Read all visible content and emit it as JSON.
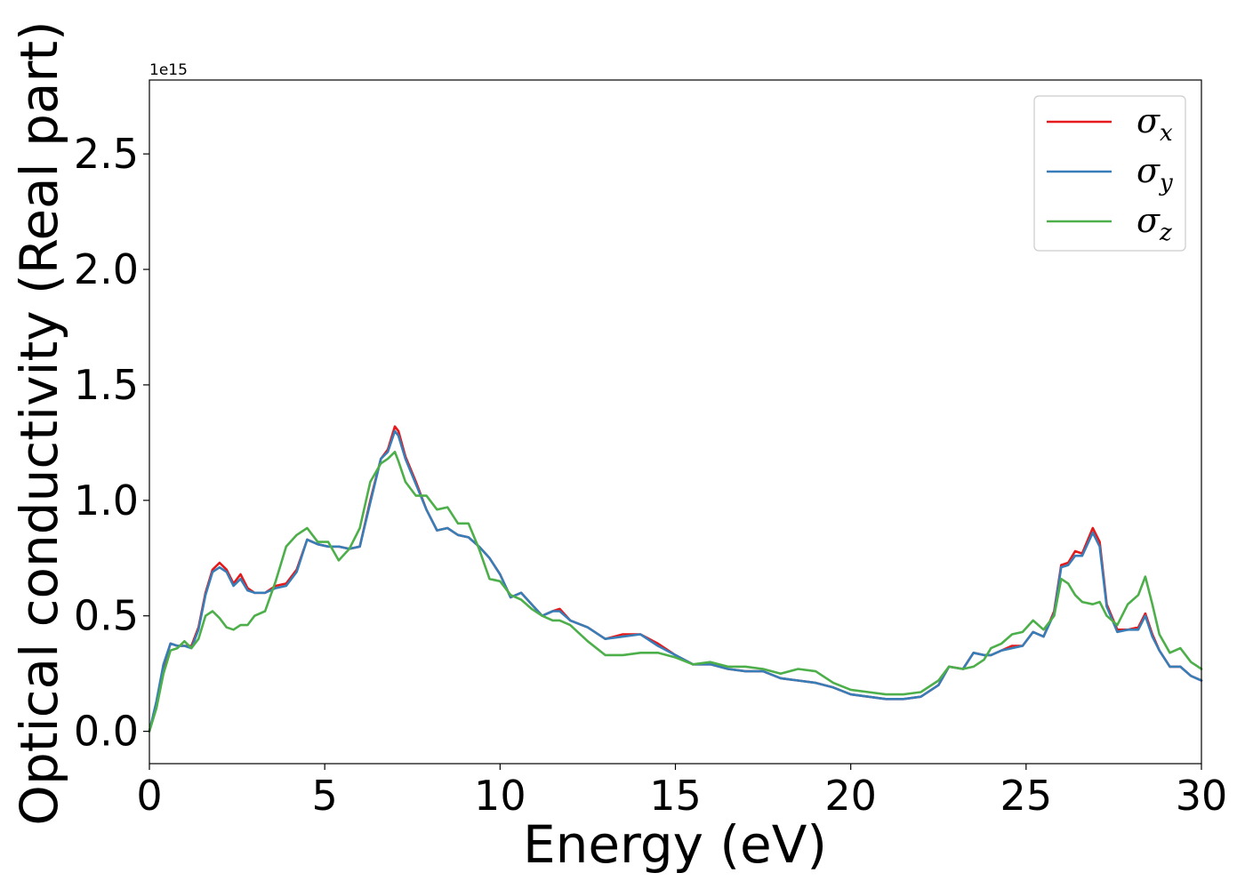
{
  "chart_data": {
    "type": "line",
    "title": "",
    "xlabel": "Energy (eV)",
    "ylabel": "Optical conductivity (Real part)",
    "y_offset_label": "1e15",
    "xlim": [
      0,
      30
    ],
    "ylim": [
      -0.14,
      2.82
    ],
    "xticks": [
      0,
      5,
      10,
      15,
      20,
      25,
      30
    ],
    "yticks": [
      0.0,
      0.5,
      1.0,
      1.5,
      2.0,
      2.5
    ],
    "xtick_labels": [
      "0",
      "5",
      "10",
      "15",
      "20",
      "25",
      "30"
    ],
    "ytick_labels": [
      "0.0",
      "0.5",
      "1.0",
      "1.5",
      "2.0",
      "2.5"
    ],
    "grid": false,
    "legend_position": "top-right",
    "series": [
      {
        "name": "σx",
        "symbol": "σ",
        "subscript": "x",
        "color": "#e41a1c",
        "x": [
          0,
          0.2,
          0.4,
          0.6,
          0.8,
          1.0,
          1.2,
          1.4,
          1.6,
          1.8,
          2.0,
          2.2,
          2.4,
          2.6,
          2.8,
          3.0,
          3.3,
          3.6,
          3.9,
          4.2,
          4.5,
          4.8,
          5.1,
          5.4,
          5.7,
          6.0,
          6.3,
          6.6,
          6.8,
          7.0,
          7.1,
          7.3,
          7.6,
          7.9,
          8.2,
          8.5,
          8.8,
          9.1,
          9.4,
          9.7,
          10.0,
          10.3,
          10.6,
          10.9,
          11.2,
          11.5,
          11.7,
          12.0,
          12.5,
          13.0,
          13.5,
          14.0,
          14.5,
          15.0,
          15.5,
          16.0,
          16.5,
          17.0,
          17.5,
          18.0,
          18.5,
          19.0,
          19.5,
          20.0,
          20.5,
          21.0,
          21.5,
          22.0,
          22.5,
          22.8,
          23.2,
          23.5,
          23.8,
          24.0,
          24.3,
          24.6,
          24.9,
          25.2,
          25.5,
          25.8,
          26.0,
          26.2,
          26.4,
          26.6,
          26.9,
          27.1,
          27.3,
          27.6,
          27.9,
          28.2,
          28.4,
          28.6,
          28.8,
          29.1,
          29.4,
          29.7,
          30.0
        ],
        "values": [
          0.0,
          0.12,
          0.28,
          0.38,
          0.37,
          0.37,
          0.37,
          0.45,
          0.6,
          0.7,
          0.73,
          0.7,
          0.64,
          0.68,
          0.62,
          0.6,
          0.6,
          0.63,
          0.64,
          0.7,
          0.83,
          0.81,
          0.8,
          0.8,
          0.79,
          0.8,
          1.0,
          1.18,
          1.22,
          1.32,
          1.3,
          1.19,
          1.08,
          0.96,
          0.87,
          0.88,
          0.85,
          0.84,
          0.8,
          0.75,
          0.68,
          0.58,
          0.6,
          0.55,
          0.5,
          0.52,
          0.53,
          0.48,
          0.45,
          0.4,
          0.42,
          0.42,
          0.38,
          0.33,
          0.29,
          0.29,
          0.27,
          0.26,
          0.26,
          0.23,
          0.22,
          0.21,
          0.19,
          0.16,
          0.15,
          0.14,
          0.14,
          0.15,
          0.2,
          0.28,
          0.27,
          0.34,
          0.33,
          0.33,
          0.35,
          0.37,
          0.37,
          0.43,
          0.41,
          0.52,
          0.72,
          0.73,
          0.78,
          0.77,
          0.88,
          0.82,
          0.55,
          0.44,
          0.44,
          0.45,
          0.51,
          0.42,
          0.35,
          0.28,
          0.28,
          0.24,
          0.22
        ]
      },
      {
        "name": "σy",
        "symbol": "σ",
        "subscript": "y",
        "color": "#377eb8",
        "x": [
          0,
          0.2,
          0.4,
          0.6,
          0.8,
          1.0,
          1.2,
          1.4,
          1.6,
          1.8,
          2.0,
          2.2,
          2.4,
          2.6,
          2.8,
          3.0,
          3.3,
          3.6,
          3.9,
          4.2,
          4.5,
          4.8,
          5.1,
          5.4,
          5.7,
          6.0,
          6.3,
          6.6,
          6.8,
          7.0,
          7.1,
          7.3,
          7.6,
          7.9,
          8.2,
          8.5,
          8.8,
          9.1,
          9.4,
          9.7,
          10.0,
          10.3,
          10.6,
          10.9,
          11.2,
          11.5,
          11.7,
          12.0,
          12.5,
          13.0,
          13.5,
          14.0,
          14.5,
          15.0,
          15.5,
          16.0,
          16.5,
          17.0,
          17.5,
          18.0,
          18.5,
          19.0,
          19.5,
          20.0,
          20.5,
          21.0,
          21.5,
          22.0,
          22.5,
          22.8,
          23.2,
          23.5,
          23.8,
          24.0,
          24.3,
          24.6,
          24.9,
          25.2,
          25.5,
          25.8,
          26.0,
          26.2,
          26.4,
          26.6,
          26.9,
          27.1,
          27.3,
          27.6,
          27.9,
          28.2,
          28.4,
          28.6,
          28.8,
          29.1,
          29.4,
          29.7,
          30.0
        ],
        "values": [
          0.0,
          0.13,
          0.29,
          0.38,
          0.37,
          0.37,
          0.36,
          0.44,
          0.59,
          0.69,
          0.71,
          0.69,
          0.63,
          0.66,
          0.61,
          0.6,
          0.6,
          0.62,
          0.63,
          0.69,
          0.83,
          0.81,
          0.8,
          0.8,
          0.79,
          0.8,
          0.99,
          1.18,
          1.21,
          1.3,
          1.28,
          1.18,
          1.07,
          0.96,
          0.87,
          0.88,
          0.85,
          0.84,
          0.8,
          0.75,
          0.68,
          0.58,
          0.6,
          0.55,
          0.5,
          0.52,
          0.52,
          0.48,
          0.45,
          0.4,
          0.41,
          0.42,
          0.37,
          0.33,
          0.29,
          0.29,
          0.27,
          0.26,
          0.26,
          0.23,
          0.22,
          0.21,
          0.19,
          0.16,
          0.15,
          0.14,
          0.14,
          0.15,
          0.2,
          0.28,
          0.27,
          0.34,
          0.33,
          0.33,
          0.35,
          0.36,
          0.37,
          0.43,
          0.41,
          0.51,
          0.71,
          0.72,
          0.76,
          0.76,
          0.86,
          0.8,
          0.54,
          0.43,
          0.44,
          0.44,
          0.5,
          0.41,
          0.35,
          0.28,
          0.28,
          0.24,
          0.22
        ]
      },
      {
        "name": "σz",
        "symbol": "σ",
        "subscript": "z",
        "color": "#4daf4a",
        "x": [
          0,
          0.2,
          0.4,
          0.6,
          0.8,
          1.0,
          1.2,
          1.4,
          1.6,
          1.8,
          2.0,
          2.2,
          2.4,
          2.6,
          2.8,
          3.0,
          3.3,
          3.6,
          3.9,
          4.2,
          4.5,
          4.8,
          5.1,
          5.4,
          5.7,
          6.0,
          6.3,
          6.6,
          6.8,
          7.0,
          7.1,
          7.3,
          7.6,
          7.9,
          8.2,
          8.5,
          8.8,
          9.1,
          9.4,
          9.7,
          10.0,
          10.3,
          10.6,
          10.9,
          11.2,
          11.5,
          11.7,
          12.0,
          12.5,
          13.0,
          13.5,
          14.0,
          14.5,
          15.0,
          15.5,
          16.0,
          16.5,
          17.0,
          17.5,
          18.0,
          18.5,
          19.0,
          19.5,
          20.0,
          20.5,
          21.0,
          21.5,
          22.0,
          22.5,
          22.8,
          23.2,
          23.5,
          23.8,
          24.0,
          24.3,
          24.6,
          24.9,
          25.2,
          25.5,
          25.8,
          26.0,
          26.2,
          26.4,
          26.6,
          26.9,
          27.1,
          27.3,
          27.6,
          27.9,
          28.2,
          28.4,
          28.6,
          28.8,
          29.1,
          29.4,
          29.7,
          30.0
        ],
        "values": [
          0.0,
          0.1,
          0.25,
          0.35,
          0.36,
          0.39,
          0.36,
          0.4,
          0.5,
          0.52,
          0.49,
          0.45,
          0.44,
          0.46,
          0.46,
          0.5,
          0.52,
          0.65,
          0.8,
          0.85,
          0.88,
          0.82,
          0.82,
          0.74,
          0.79,
          0.88,
          1.08,
          1.16,
          1.18,
          1.21,
          1.17,
          1.08,
          1.02,
          1.02,
          0.96,
          0.97,
          0.9,
          0.9,
          0.79,
          0.66,
          0.65,
          0.59,
          0.57,
          0.53,
          0.5,
          0.48,
          0.48,
          0.46,
          0.39,
          0.33,
          0.33,
          0.34,
          0.34,
          0.32,
          0.29,
          0.3,
          0.28,
          0.28,
          0.27,
          0.25,
          0.27,
          0.26,
          0.21,
          0.18,
          0.17,
          0.16,
          0.16,
          0.17,
          0.22,
          0.28,
          0.27,
          0.28,
          0.31,
          0.36,
          0.38,
          0.42,
          0.43,
          0.48,
          0.44,
          0.5,
          0.66,
          0.64,
          0.59,
          0.56,
          0.55,
          0.56,
          0.5,
          0.46,
          0.55,
          0.59,
          0.67,
          0.55,
          0.42,
          0.34,
          0.36,
          0.3,
          0.27
        ]
      }
    ]
  }
}
